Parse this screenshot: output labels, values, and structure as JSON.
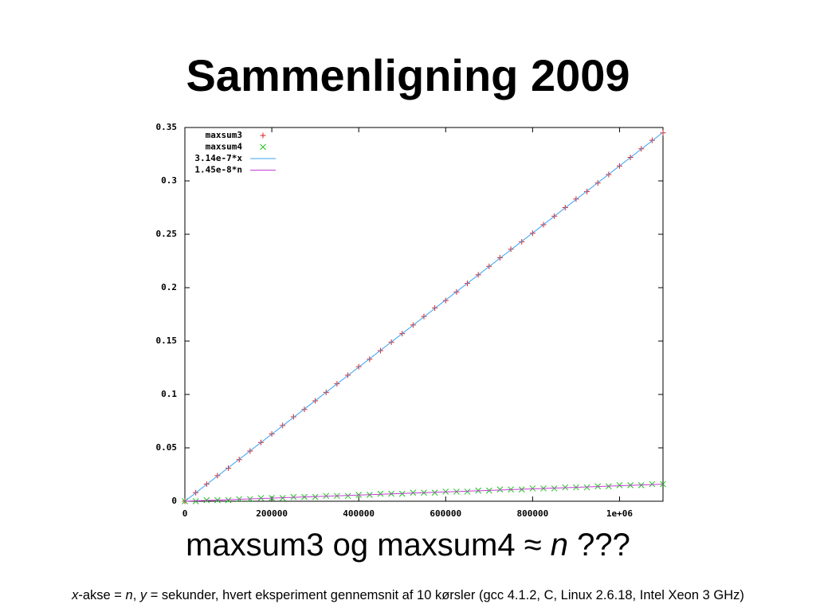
{
  "slide": {
    "title": "Sammenligning 2009",
    "caption": [
      {
        "text": "maxsum3 og maxsum4 ≈ ",
        "italic": false
      },
      {
        "text": "n",
        "italic": true
      },
      {
        "text": " ???",
        "italic": false
      }
    ],
    "footnote": [
      {
        "text": "x",
        "italic": true
      },
      {
        "text": "-akse = ",
        "italic": false
      },
      {
        "text": "n",
        "italic": true
      },
      {
        "text": ", ",
        "italic": false
      },
      {
        "text": "y",
        "italic": true
      },
      {
        "text": " = sekunder, hvert eksperiment gennemsnit af 10 kørsler (gcc 4.1.2, C, Linux 2.6.18, Intel Xeon 3 GHz)",
        "italic": false
      }
    ]
  },
  "chart_data": {
    "type": "scatter",
    "x": [
      0,
      25000,
      50000,
      75000,
      100000,
      125000,
      150000,
      175000,
      200000,
      225000,
      250000,
      275000,
      300000,
      325000,
      350000,
      375000,
      400000,
      425000,
      450000,
      475000,
      500000,
      525000,
      550000,
      575000,
      600000,
      625000,
      650000,
      675000,
      700000,
      725000,
      750000,
      775000,
      800000,
      825000,
      850000,
      875000,
      900000,
      925000,
      950000,
      975000,
      1000000,
      1025000,
      1050000,
      1075000,
      1100000
    ],
    "series": [
      {
        "name": "maxsum3",
        "color": "#e02020",
        "marker": "plus",
        "values": [
          0,
          0.008,
          0.016,
          0.024,
          0.031,
          0.039,
          0.047,
          0.055,
          0.063,
          0.071,
          0.079,
          0.086,
          0.094,
          0.102,
          0.11,
          0.118,
          0.126,
          0.133,
          0.141,
          0.149,
          0.157,
          0.165,
          0.173,
          0.181,
          0.188,
          0.196,
          0.204,
          0.212,
          0.22,
          0.228,
          0.236,
          0.243,
          0.251,
          0.259,
          0.267,
          0.275,
          0.283,
          0.29,
          0.298,
          0.306,
          0.314,
          0.322,
          0.33,
          0.338,
          0.345
        ]
      },
      {
        "name": "maxsum4",
        "color": "#20c020",
        "marker": "cross",
        "values": [
          0,
          0,
          0.001,
          0.001,
          0.001,
          0.002,
          0.002,
          0.003,
          0.003,
          0.003,
          0.004,
          0.004,
          0.004,
          0.005,
          0.005,
          0.005,
          0.006,
          0.006,
          0.007,
          0.007,
          0.007,
          0.008,
          0.008,
          0.008,
          0.009,
          0.009,
          0.009,
          0.01,
          0.01,
          0.011,
          0.011,
          0.011,
          0.012,
          0.012,
          0.012,
          0.013,
          0.013,
          0.013,
          0.014,
          0.014,
          0.015,
          0.015,
          0.015,
          0.016,
          0.016
        ]
      },
      {
        "name": "3.14e-7*x",
        "color": "#3aa0f0",
        "marker": "line",
        "x": [
          0,
          1100000
        ],
        "values": [
          0,
          0.3454
        ]
      },
      {
        "name": "1.45e-8*n",
        "color": "#c040d0",
        "marker": "line",
        "x": [
          0,
          1100000
        ],
        "values": [
          0,
          0.01595
        ]
      }
    ],
    "xlim": [
      0,
      1100000
    ],
    "xticks": [
      0,
      200000,
      400000,
      600000,
      800000,
      {
        "value": 1000000,
        "label": "1e+06"
      }
    ],
    "ylim": [
      0,
      0.35
    ],
    "yticks": [
      0,
      0.05,
      0.1,
      0.15,
      0.2,
      0.25,
      0.3,
      0.35
    ],
    "legend": "top-left"
  }
}
